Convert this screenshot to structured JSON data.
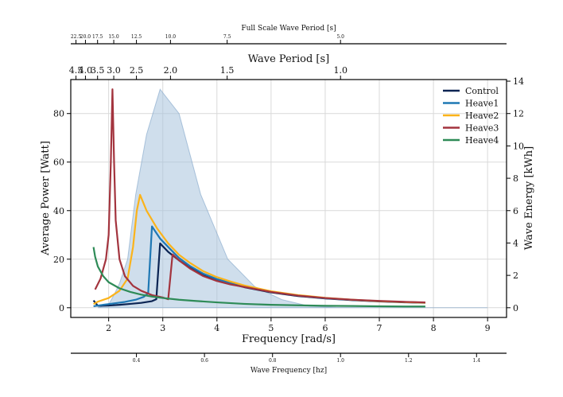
{
  "chart_data": {
    "type": "line",
    "axes": {
      "bottom_main": {
        "label": "Frequency [rad/s]",
        "range": [
          1.3,
          9.35
        ],
        "ticks": [
          2,
          3,
          4,
          5,
          6,
          7,
          8,
          9
        ]
      },
      "left": {
        "label": "Average Power [Watt]",
        "range": [
          -4,
          94
        ],
        "ticks": [
          0,
          20,
          40,
          60,
          80
        ]
      },
      "right": {
        "label": "Wave Energy [kWh]",
        "range": [
          -0.6,
          14.1
        ],
        "ticks": [
          0,
          2,
          4,
          6,
          8,
          10,
          12,
          14
        ]
      },
      "top_inner": {
        "label": "Wave Period [s]",
        "ticks": [
          "4.5",
          "4.0",
          "3.5",
          "3.0",
          "2.5",
          "2.0",
          "1.5",
          "1.0"
        ],
        "tick_positions": [
          1.396,
          1.571,
          1.795,
          2.094,
          2.513,
          3.142,
          4.189,
          6.283
        ]
      },
      "top_outer": {
        "label": "Full Scale Wave Period [s]",
        "ticks": [
          "22.5",
          "20.0",
          "17.5",
          "15.0",
          "12.5",
          "10.0",
          "7.5",
          "5.0"
        ],
        "tick_positions": [
          1.396,
          1.571,
          1.795,
          2.094,
          2.513,
          3.142,
          4.189,
          6.283
        ]
      },
      "bottom_outer": {
        "label": "Wave Frequency [hz]",
        "ticks": [
          "0.4",
          "0.6",
          "0.8",
          "1.0",
          "1.2",
          "1.4"
        ],
        "tick_positions": [
          2.513,
          3.77,
          5.027,
          6.283,
          7.54,
          8.796
        ]
      }
    },
    "grid": true,
    "legend_position": "top-right",
    "series": [
      {
        "name": "Control",
        "color": "#0b2453",
        "axis": "left",
        "x": [
          1.72,
          1.8,
          2.0,
          2.2,
          2.4,
          2.6,
          2.8,
          2.88,
          2.95,
          3.1,
          3.3,
          3.5,
          3.75,
          4.0,
          4.25,
          4.5,
          5.0,
          5.5,
          6.0,
          6.5,
          7.0,
          7.5,
          7.85
        ],
        "y": [
          3.0,
          0.8,
          0.9,
          1.2,
          1.6,
          2.0,
          2.7,
          3.5,
          26.5,
          23.0,
          19.5,
          16.5,
          13.5,
          11.5,
          9.8,
          8.5,
          6.3,
          4.8,
          3.8,
          3.1,
          2.6,
          2.2,
          2.0
        ]
      },
      {
        "name": "Heave1",
        "color": "#1f78b4",
        "axis": "left",
        "x": [
          1.72,
          1.9,
          2.1,
          2.3,
          2.5,
          2.65,
          2.73,
          2.8,
          2.95,
          3.1,
          3.3,
          3.5,
          3.75,
          4.0,
          4.25,
          4.5,
          5.0,
          5.5,
          6.0,
          6.5,
          7.0,
          7.5,
          7.85
        ],
        "y": [
          0.6,
          1.2,
          1.8,
          2.4,
          3.3,
          4.5,
          6.0,
          33.5,
          28.5,
          25.0,
          20.5,
          17.2,
          14.0,
          11.8,
          10.2,
          8.9,
          6.5,
          5.0,
          3.9,
          3.2,
          2.7,
          2.3,
          2.1
        ]
      },
      {
        "name": "Heave2",
        "color": "#fbb31a",
        "axis": "left",
        "x": [
          1.72,
          1.8,
          2.0,
          2.2,
          2.35,
          2.45,
          2.52,
          2.58,
          2.7,
          2.9,
          3.1,
          3.3,
          3.5,
          3.75,
          4.0,
          4.25,
          4.5,
          5.0,
          5.5,
          6.0,
          6.5,
          7.0,
          7.5,
          7.85
        ],
        "y": [
          1.5,
          2.5,
          4.0,
          7.0,
          12.0,
          25.0,
          40.0,
          46.5,
          40.0,
          32.5,
          26.5,
          21.8,
          18.5,
          15.0,
          12.6,
          10.8,
          9.2,
          6.8,
          5.2,
          4.1,
          3.3,
          2.7,
          2.3,
          2.1
        ]
      },
      {
        "name": "Heave3",
        "color": "#a3343e",
        "axis": "left",
        "x": [
          1.75,
          1.85,
          1.95,
          2.0,
          2.04,
          2.07,
          2.1,
          2.13,
          2.2,
          2.3,
          2.45,
          2.6,
          2.8,
          3.0,
          3.1,
          3.18,
          3.3,
          3.5,
          3.75,
          4.0,
          4.25,
          4.5,
          5.0,
          5.5,
          6.0,
          6.5,
          7.0,
          7.5,
          7.85
        ],
        "y": [
          7.5,
          12.0,
          20.0,
          30.0,
          60.0,
          90.0,
          60.0,
          36.0,
          20.0,
          13.0,
          9.0,
          7.0,
          5.2,
          4.2,
          3.5,
          22.0,
          19.5,
          16.2,
          13.0,
          11.0,
          9.6,
          8.6,
          6.5,
          5.0,
          4.0,
          3.3,
          2.8,
          2.4,
          2.2
        ]
      },
      {
        "name": "Heave4",
        "color": "#2e8b57",
        "axis": "left",
        "x": [
          1.72,
          1.75,
          1.8,
          1.9,
          2.0,
          2.2,
          2.4,
          2.6,
          2.8,
          3.0,
          3.3,
          3.6,
          4.0,
          4.5,
          5.0,
          5.5,
          6.0,
          6.5,
          7.0,
          7.5,
          7.85
        ],
        "y": [
          25.0,
          21.0,
          17.0,
          13.0,
          10.5,
          8.0,
          6.5,
          5.4,
          4.6,
          4.0,
          3.3,
          2.8,
          2.2,
          1.6,
          1.2,
          1.0,
          0.8,
          0.7,
          0.6,
          0.5,
          0.5
        ]
      }
    ],
    "area": {
      "name": "Wave Energy",
      "axis": "right",
      "color": "#a8c3dc",
      "x": [
        1.8,
        2.0,
        2.1,
        2.2,
        2.35,
        2.5,
        2.7,
        2.95,
        3.3,
        3.7,
        4.2,
        4.7,
        5.2,
        5.7,
        6.2,
        7.0,
        8.0,
        9.0
      ],
      "y": [
        0.0,
        0.2,
        0.8,
        1.5,
        3.0,
        7.0,
        10.7,
        13.5,
        12.0,
        7.0,
        3.0,
        1.3,
        0.5,
        0.1,
        0.02,
        0.0,
        0.0,
        0.0
      ]
    }
  }
}
